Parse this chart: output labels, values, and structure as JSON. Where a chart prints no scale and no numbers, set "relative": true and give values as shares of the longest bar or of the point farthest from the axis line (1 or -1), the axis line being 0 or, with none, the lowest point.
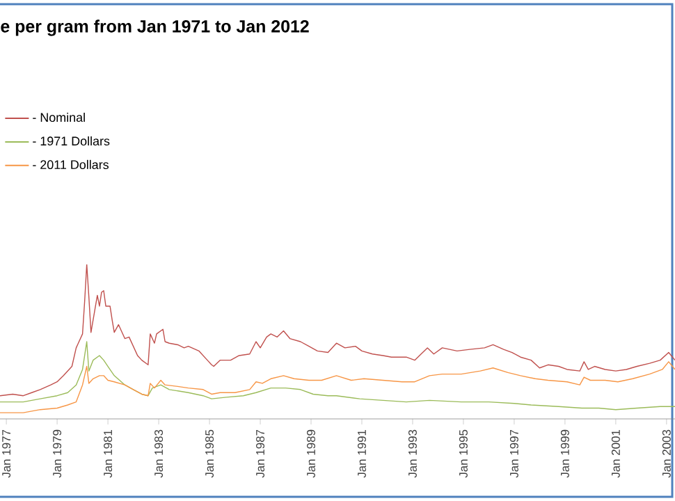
{
  "chart_data": {
    "type": "line",
    "title": "e per gram from Jan 1971 to Jan 2012",
    "relative": true,
    "legend": "top left",
    "xlim": [
      "1976-10",
      "2003-05"
    ],
    "xticks": [
      {
        "value": "1977-01",
        "label": "Jan 1977"
      },
      {
        "value": "1979-01",
        "label": "Jan 1979"
      },
      {
        "value": "1981-01",
        "label": "Jan 1981"
      },
      {
        "value": "1983-01",
        "label": "Jan 1983"
      },
      {
        "value": "1985-01",
        "label": "Jan 1985"
      },
      {
        "value": "1987-01",
        "label": "Jan 1987"
      },
      {
        "value": "1989-01",
        "label": "Jan 1989"
      },
      {
        "value": "1991-01",
        "label": "Jan 1991"
      },
      {
        "value": "1993-01",
        "label": "Jan 1993"
      },
      {
        "value": "1995-01",
        "label": "Jan 1995"
      },
      {
        "value": "1997-01",
        "label": "Jan 1997"
      },
      {
        "value": "1999-01",
        "label": "Jan 1999"
      },
      {
        "value": "2001-01",
        "label": "Jan 2001"
      },
      {
        "value": "2003-01",
        "label": "Jan 2003"
      }
    ],
    "series": [
      {
        "name": "- Nominal",
        "color": "#c0504d",
        "x": [
          "1976-10",
          "1977-04",
          "1977-09",
          "1978-01",
          "1978-05",
          "1978-10",
          "1979-01",
          "1979-04",
          "1979-08",
          "1979-10",
          "1979-11",
          "1980-01",
          "1980-02",
          "1980-03",
          "1980-04",
          "1980-05",
          "1980-06",
          "1980-08",
          "1980-09",
          "1980-10",
          "1980-11",
          "1980-12",
          "1981-02",
          "1981-03",
          "1981-04",
          "1981-06",
          "1981-09",
          "1981-11",
          "1982-01",
          "1982-03",
          "1982-05",
          "1982-08",
          "1982-09",
          "1982-11",
          "1982-12",
          "1983-03",
          "1983-04",
          "1983-06",
          "1983-10",
          "1984-01",
          "1984-03",
          "1984-08",
          "1984-12",
          "1985-02",
          "1985-03",
          "1985-06",
          "1985-11",
          "1986-03",
          "1986-08",
          "1986-11",
          "1987-01",
          "1987-04",
          "1987-06",
          "1987-09",
          "1987-12",
          "1988-03",
          "1988-08",
          "1988-12",
          "1989-04",
          "1989-09",
          "1990-01",
          "1990-05",
          "1990-10",
          "1991-01",
          "1991-06",
          "1991-11",
          "1992-03",
          "1992-10",
          "1993-02",
          "1993-08",
          "1993-11",
          "1994-03",
          "1994-10",
          "1995-04",
          "1995-11",
          "1996-03",
          "1996-08",
          "1996-12",
          "1997-04",
          "1997-09",
          "1998-01",
          "1998-05",
          "1998-10",
          "1999-02",
          "1999-08",
          "1999-10",
          "1999-12",
          "2000-03",
          "2000-08",
          "2001-01",
          "2001-06",
          "2001-11",
          "2002-05",
          "2002-10",
          "2003-02",
          "2003-05"
        ],
        "values": [
          0.15,
          0.16,
          0.15,
          0.17,
          0.19,
          0.22,
          0.24,
          0.28,
          0.34,
          0.46,
          0.49,
          0.55,
          0.76,
          1.0,
          0.79,
          0.56,
          0.64,
          0.8,
          0.73,
          0.82,
          0.83,
          0.73,
          0.73,
          0.64,
          0.56,
          0.61,
          0.52,
          0.53,
          0.47,
          0.41,
          0.38,
          0.35,
          0.55,
          0.49,
          0.55,
          0.58,
          0.5,
          0.49,
          0.48,
          0.46,
          0.47,
          0.44,
          0.38,
          0.35,
          0.34,
          0.38,
          0.38,
          0.41,
          0.42,
          0.5,
          0.46,
          0.53,
          0.55,
          0.53,
          0.57,
          0.52,
          0.5,
          0.47,
          0.44,
          0.43,
          0.49,
          0.46,
          0.47,
          0.44,
          0.42,
          0.41,
          0.4,
          0.4,
          0.38,
          0.46,
          0.42,
          0.46,
          0.44,
          0.45,
          0.46,
          0.48,
          0.45,
          0.43,
          0.4,
          0.38,
          0.33,
          0.35,
          0.34,
          0.32,
          0.31,
          0.37,
          0.32,
          0.34,
          0.32,
          0.31,
          0.32,
          0.34,
          0.36,
          0.38,
          0.43,
          0.38
        ]
      },
      {
        "name": "- 1971 Dollars",
        "color": "#9bbb59",
        "x": [
          "1976-10",
          "1977-09",
          "1978-05",
          "1979-01",
          "1979-06",
          "1979-10",
          "1980-01",
          "1980-03",
          "1980-04",
          "1980-06",
          "1980-09",
          "1980-11",
          "1981-01",
          "1981-04",
          "1981-09",
          "1982-01",
          "1982-05",
          "1982-08",
          "1982-10",
          "1983-02",
          "1983-06",
          "1984-03",
          "1984-10",
          "1985-02",
          "1985-09",
          "1986-05",
          "1986-11",
          "1987-06",
          "1988-01",
          "1988-08",
          "1989-02",
          "1989-09",
          "1990-01",
          "1990-12",
          "1991-11",
          "1992-10",
          "1993-09",
          "1994-12",
          "1996-01",
          "1997-01",
          "1997-09",
          "1998-10",
          "1999-09",
          "2000-05",
          "2001-01",
          "2001-11",
          "2002-10",
          "2003-05"
        ],
        "values": [
          0.11,
          0.11,
          0.13,
          0.15,
          0.17,
          0.22,
          0.32,
          0.5,
          0.31,
          0.38,
          0.41,
          0.38,
          0.34,
          0.28,
          0.22,
          0.19,
          0.16,
          0.15,
          0.2,
          0.22,
          0.19,
          0.17,
          0.15,
          0.13,
          0.14,
          0.15,
          0.17,
          0.2,
          0.2,
          0.19,
          0.16,
          0.15,
          0.15,
          0.13,
          0.12,
          0.11,
          0.12,
          0.11,
          0.11,
          0.1,
          0.09,
          0.08,
          0.07,
          0.07,
          0.06,
          0.07,
          0.08,
          0.08
        ]
      },
      {
        "name": "- 2011 Dollars",
        "color": "#f79646",
        "x": [
          "1976-10",
          "1977-09",
          "1978-05",
          "1979-01",
          "1979-06",
          "1979-10",
          "1980-01",
          "1980-03",
          "1980-04",
          "1980-06",
          "1980-09",
          "1980-11",
          "1981-01",
          "1981-04",
          "1981-09",
          "1982-01",
          "1982-05",
          "1982-08",
          "1982-09",
          "1982-11",
          "1983-02",
          "1983-04",
          "1983-10",
          "1984-03",
          "1984-10",
          "1985-02",
          "1985-06",
          "1986-01",
          "1986-08",
          "1986-11",
          "1987-02",
          "1987-06",
          "1987-12",
          "1988-05",
          "1988-12",
          "1989-06",
          "1990-01",
          "1990-08",
          "1991-02",
          "1991-11",
          "1992-08",
          "1993-02",
          "1993-09",
          "1994-03",
          "1994-12",
          "1995-09",
          "1996-03",
          "1996-10",
          "1997-04",
          "1997-11",
          "1998-05",
          "1999-02",
          "1999-08",
          "1999-10",
          "2000-01",
          "2000-08",
          "2001-02",
          "2001-09",
          "2002-05",
          "2002-11",
          "2003-02",
          "2003-05"
        ],
        "values": [
          0.04,
          0.04,
          0.06,
          0.07,
          0.09,
          0.11,
          0.22,
          0.34,
          0.23,
          0.26,
          0.28,
          0.28,
          0.25,
          0.24,
          0.22,
          0.19,
          0.16,
          0.15,
          0.23,
          0.2,
          0.25,
          0.22,
          0.21,
          0.2,
          0.19,
          0.16,
          0.17,
          0.17,
          0.19,
          0.24,
          0.23,
          0.26,
          0.28,
          0.26,
          0.25,
          0.25,
          0.28,
          0.25,
          0.26,
          0.25,
          0.24,
          0.24,
          0.28,
          0.29,
          0.29,
          0.31,
          0.33,
          0.3,
          0.28,
          0.26,
          0.25,
          0.24,
          0.22,
          0.27,
          0.25,
          0.25,
          0.24,
          0.26,
          0.29,
          0.32,
          0.37,
          0.32
        ]
      }
    ]
  }
}
